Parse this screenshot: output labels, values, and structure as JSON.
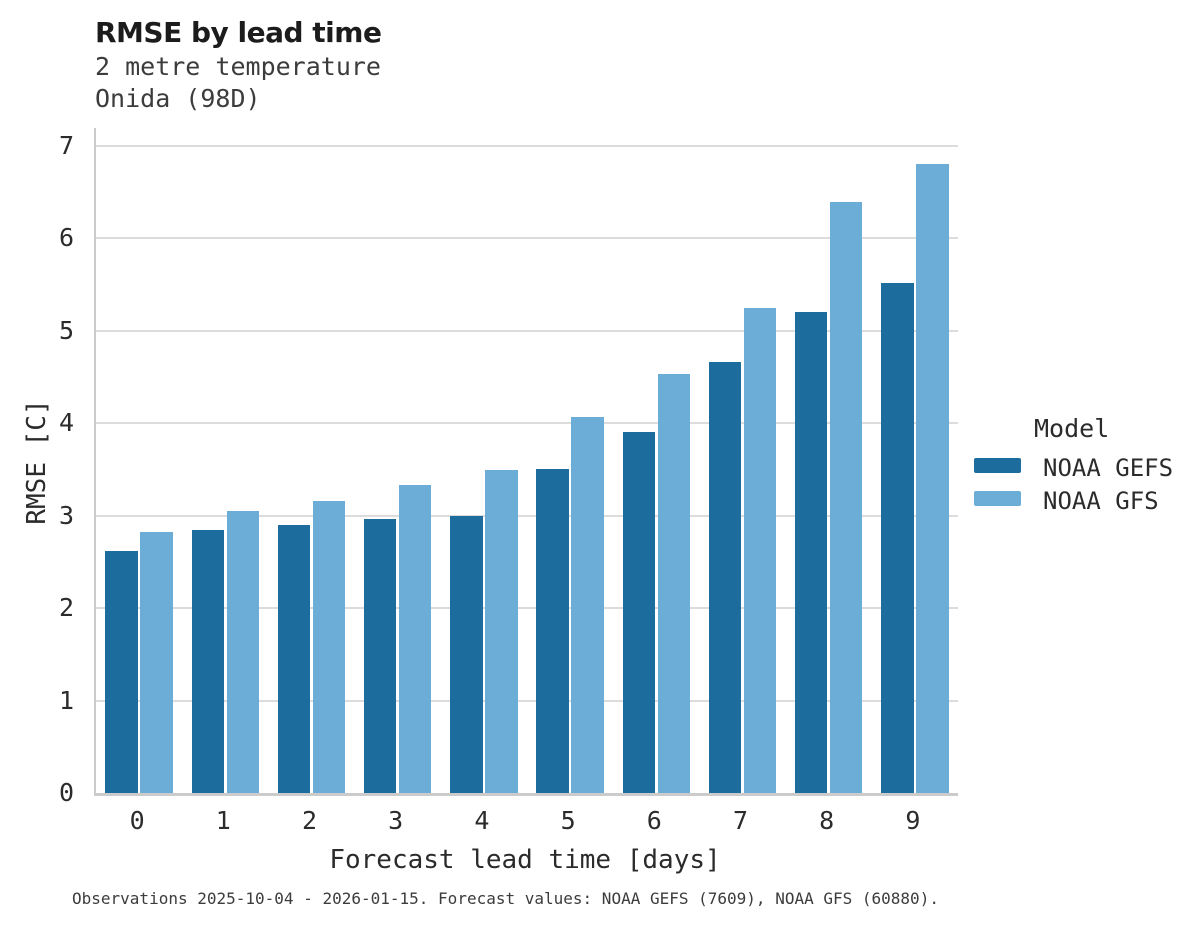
{
  "header": {
    "title": "RMSE by lead time",
    "subtitle_line1": "2 metre temperature",
    "subtitle_line2": "Onida (98D)"
  },
  "legend": {
    "title": "Model"
  },
  "footer": {
    "note": "Observations 2025-10-04 - 2026-01-15. Forecast values: NOAA GEFS (7609), NOAA GFS (60880)."
  },
  "chart_data": {
    "type": "bar",
    "title": "RMSE by lead time",
    "subtitle": [
      "2 metre temperature",
      "Onida (98D)"
    ],
    "categories": [
      "0",
      "1",
      "2",
      "3",
      "4",
      "5",
      "6",
      "7",
      "8",
      "9"
    ],
    "series": [
      {
        "name": "NOAA GEFS",
        "color": "#1c6d9d",
        "values": [
          2.62,
          2.85,
          2.9,
          2.96,
          3.0,
          3.5,
          3.9,
          4.66,
          5.2,
          5.52
        ]
      },
      {
        "name": "NOAA GFS",
        "color": "#6badd6",
        "values": [
          2.82,
          3.05,
          3.16,
          3.33,
          3.49,
          4.07,
          4.53,
          5.25,
          6.39,
          6.8
        ]
      }
    ],
    "xlabel": "Forecast lead time [days]",
    "ylabel": "RMSE [C]",
    "ylim": [
      0,
      7
    ],
    "yticks": [
      0,
      1,
      2,
      3,
      4,
      5,
      6,
      7
    ],
    "grid": "horizontal",
    "gridline_color": "#dcdcdc",
    "legend_position": "right"
  }
}
